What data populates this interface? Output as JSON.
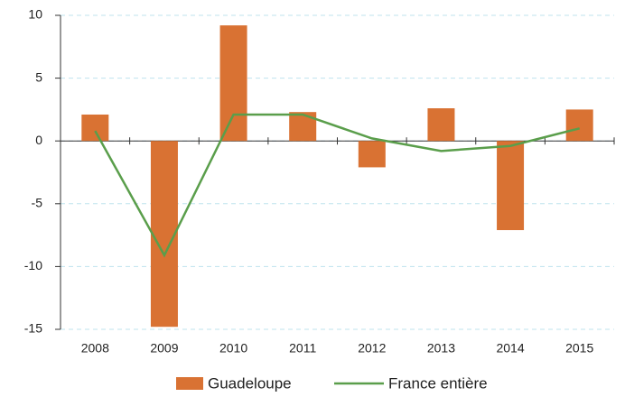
{
  "chart_data": {
    "type": "bar",
    "categories": [
      "2008",
      "2009",
      "2010",
      "2011",
      "2012",
      "2013",
      "2014",
      "2015"
    ],
    "series": [
      {
        "name": "Guadeloupe",
        "color": "#d97233",
        "type": "bar",
        "values": [
          2.1,
          -14.8,
          9.2,
          2.3,
          -2.1,
          2.6,
          -7.1,
          2.5
        ]
      },
      {
        "name": "France entière",
        "color": "#5a9e4b",
        "type": "line",
        "values": [
          0.8,
          -9.1,
          2.1,
          2.1,
          0.2,
          -0.8,
          -0.4,
          1.0
        ]
      }
    ],
    "ylim": [
      -15,
      10
    ],
    "yticks": [
      -15,
      -10,
      -5,
      0,
      5,
      10
    ],
    "grid": true,
    "legend": "bottom"
  }
}
